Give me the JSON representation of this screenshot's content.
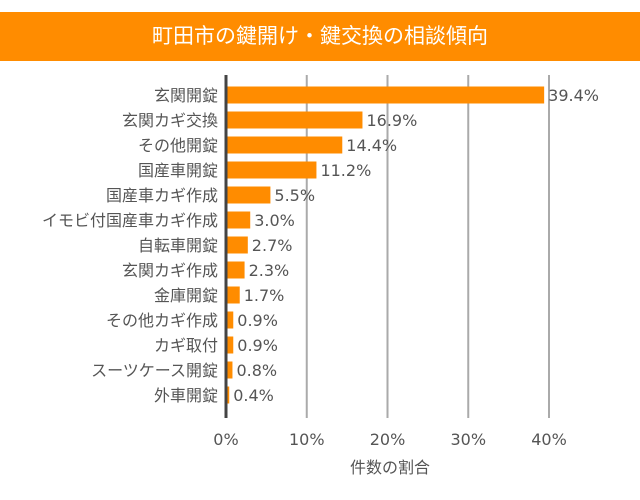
{
  "chart_data": {
    "type": "bar",
    "orientation": "horizontal",
    "title": "町田市の鍵開け・鍵交換の相談傾向",
    "xlabel": "件数の割合",
    "ylabel": "",
    "categories": [
      "玄関開錠",
      "玄関カギ交換",
      "その他開錠",
      "国産車開錠",
      "国産車カギ作成",
      "イモビ付国産車カギ作成",
      "自転車開錠",
      "玄関カギ作成",
      "金庫開錠",
      "その他カギ作成",
      "カギ取付",
      "スーツケース開錠",
      "外車開錠"
    ],
    "values": [
      39.4,
      16.9,
      14.4,
      11.2,
      5.5,
      3.0,
      2.7,
      2.3,
      1.7,
      0.9,
      0.9,
      0.8,
      0.4
    ],
    "data_labels": [
      "39.4%",
      "16.9%",
      "14.4%",
      "11.2%",
      "5.5%",
      "3.0%",
      "2.7%",
      "2.3%",
      "1.7%",
      "0.9%",
      "0.9%",
      "0.8%",
      "0.4%"
    ],
    "xlim": [
      0,
      40
    ],
    "xticks": [
      0,
      10,
      20,
      30,
      40
    ],
    "xtick_labels": [
      "0%",
      "10%",
      "20%",
      "30%",
      "40%"
    ],
    "grid": true,
    "bar_color": "#FF8C00",
    "title_bar_color": "#FF8C00"
  }
}
